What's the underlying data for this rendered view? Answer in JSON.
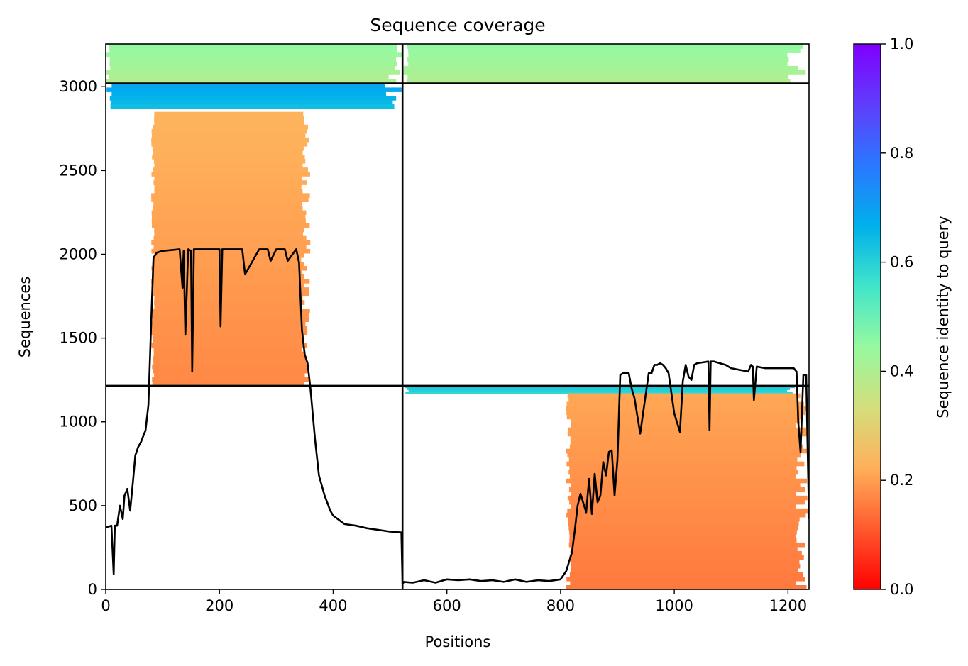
{
  "chart_data": {
    "type": "heatmap",
    "title": "Sequence coverage",
    "xlabel": "Positions",
    "ylabel": "Sequences",
    "xlim": [
      0,
      1237
    ],
    "ylim": [
      0,
      3255
    ],
    "x_ticks": [
      0,
      200,
      400,
      600,
      800,
      1000,
      1200
    ],
    "y_ticks": [
      0,
      500,
      1000,
      1500,
      2000,
      2500,
      3000
    ],
    "grid": false,
    "colorbar": {
      "label": "Sequence identity to query",
      "range": [
        0,
        1
      ],
      "ticks": [
        "0.0",
        "0.2",
        "0.4",
        "0.6",
        "0.8",
        "1.0"
      ],
      "colormap": "rainbow_r",
      "stops": [
        "#ff0000",
        "#ff5a2e",
        "#ffb05a",
        "#d4de7c",
        "#96f9a0",
        "#41e5ca",
        "#00b0eb",
        "#2a78ff",
        "#5f3dfb",
        "#7f00ff"
      ]
    },
    "block_boundaries": {
      "x": 522,
      "y": [
        1215,
        3020
      ]
    },
    "blocks": [
      {
        "name": "",
        "x_range": [
          0,
          522
        ],
        "y_range": [
          2870,
          3020
        ],
        "identity": 0.66
      },
      {
        "name": "",
        "x_range": [
          0,
          522
        ],
        "y_range": [
          3020,
          3255
        ],
        "identity": 0.42
      },
      {
        "name": "",
        "x_range": [
          80,
          360
        ],
        "y_range": [
          1215,
          2850
        ],
        "identity": 0.2
      },
      {
        "name": "",
        "x_range": [
          522,
          1237
        ],
        "y_range": [
          3020,
          3255
        ],
        "identity": 0.42
      },
      {
        "name": "",
        "x_range": [
          522,
          1237
        ],
        "y_range": [
          1170,
          1215
        ],
        "identity": 0.6
      },
      {
        "name": "",
        "x_range": [
          810,
          1237
        ],
        "y_range": [
          0,
          1170
        ],
        "identity": 0.18
      }
    ],
    "series": [
      {
        "x": [
          0,
          10,
          14,
          16,
          20,
          25,
          30,
          33,
          38,
          43,
          48,
          52,
          57,
          62,
          70,
          75,
          80,
          84,
          90,
          100,
          130,
          135,
          137,
          140,
          145,
          150,
          152,
          155,
          160,
          200,
          202,
          205,
          210,
          240,
          245,
          270,
          285,
          290,
          300,
          315,
          320,
          335,
          340,
          345,
          350,
          355,
          360,
          368,
          375,
          385,
          395,
          400,
          420,
          440,
          460,
          500,
          520,
          522,
          524,
          540,
          560,
          580,
          600,
          620,
          640,
          660,
          680,
          700,
          720,
          740,
          760,
          780,
          800,
          810,
          820,
          825,
          830,
          835,
          845,
          850,
          855,
          860,
          865,
          870,
          875,
          880,
          885,
          890,
          895,
          900,
          905,
          910,
          915,
          920,
          925,
          930,
          940,
          955,
          960,
          965,
          970,
          975,
          980,
          985,
          990,
          1000,
          1010,
          1015,
          1020,
          1025,
          1030,
          1035,
          1040,
          1060,
          1062,
          1064,
          1070,
          1090,
          1100,
          1130,
          1135,
          1138,
          1140,
          1145,
          1160,
          1180,
          1210,
          1215,
          1218,
          1222,
          1227,
          1232,
          1237
        ],
        "y": [
          370,
          380,
          90,
          380,
          380,
          500,
          420,
          560,
          600,
          470,
          650,
          800,
          850,
          880,
          950,
          1100,
          1600,
          1980,
          2010,
          2020,
          2030,
          1800,
          2020,
          1520,
          2030,
          2020,
          1300,
          2030,
          2030,
          2030,
          1570,
          2030,
          2030,
          2030,
          1880,
          2030,
          2030,
          1960,
          2030,
          2030,
          1960,
          2030,
          1950,
          1550,
          1400,
          1350,
          1200,
          900,
          680,
          560,
          470,
          440,
          390,
          380,
          365,
          345,
          340,
          30,
          45,
          40,
          55,
          40,
          60,
          55,
          60,
          50,
          55,
          45,
          60,
          45,
          55,
          50,
          60,
          110,
          220,
          350,
          500,
          570,
          460,
          660,
          450,
          690,
          520,
          560,
          760,
          680,
          820,
          830,
          560,
          770,
          1280,
          1290,
          1290,
          1290,
          1200,
          1140,
          930,
          1290,
          1290,
          1340,
          1340,
          1350,
          1340,
          1320,
          1290,
          1050,
          940,
          1240,
          1340,
          1270,
          1250,
          1340,
          1350,
          1360,
          950,
          1360,
          1360,
          1340,
          1320,
          1300,
          1340,
          1330,
          1130,
          1330,
          1320,
          1320,
          1320,
          1300,
          1000,
          820,
          1280,
          1280,
          420
        ]
      }
    ]
  }
}
